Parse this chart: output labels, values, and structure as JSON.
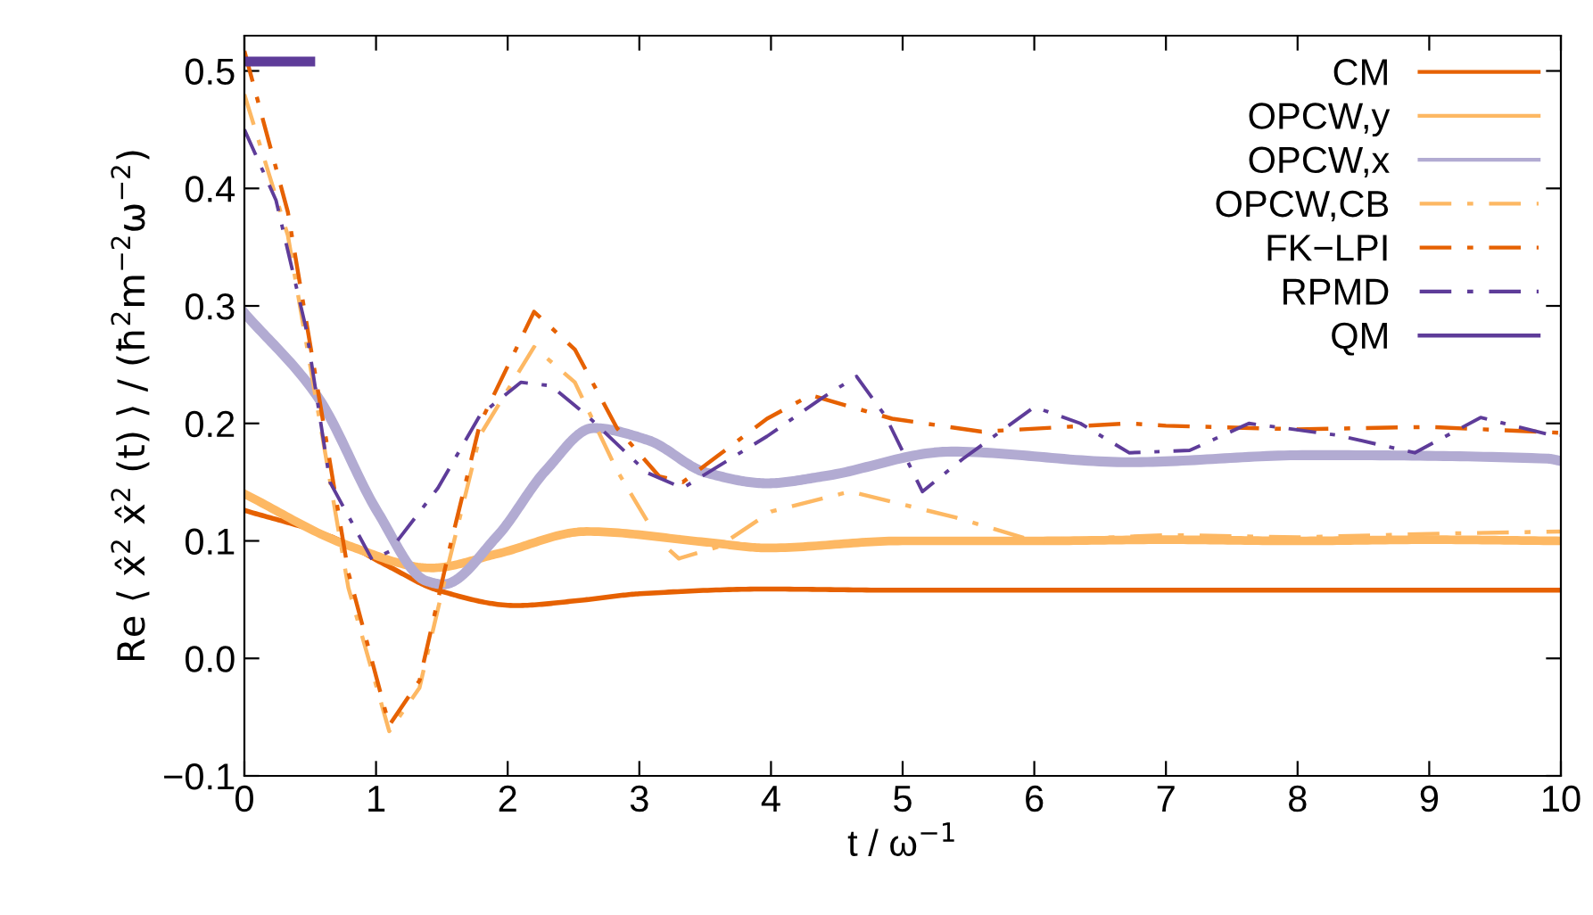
{
  "chart_data": {
    "type": "line",
    "xlabel": "t / ω$^{−1}$",
    "ylabel": "Re ⟨ x̂$^{2}$ x̂$^{2}$ (t) ⟩ / (ħ$^{2}$m$^{−2}$ω$^{−2}$)",
    "xlim": [
      0,
      10
    ],
    "xticks": [
      0,
      1,
      2,
      3,
      4,
      5,
      6,
      7,
      8,
      9,
      10
    ],
    "ylim": [
      -0.1,
      0.53
    ],
    "yticks": [
      {
        "value": -0.1,
        "label": "−0.1"
      },
      {
        "value": 0.0,
        "label": "0.0"
      },
      {
        "value": 0.1,
        "label": "0.1"
      },
      {
        "value": 0.2,
        "label": "0.2"
      },
      {
        "value": 0.3,
        "label": "0.3"
      },
      {
        "value": 0.4,
        "label": "0.4"
      },
      {
        "value": 0.5,
        "label": "0.5"
      }
    ],
    "grid": false,
    "legend": "top right",
    "series": [
      {
        "name": "CM",
        "color": "#e66101",
        "line_style": "solid",
        "x": [
          0,
          0.65,
          1.1,
          1.47,
          2.06,
          2.6,
          3.0,
          3.97,
          5,
          6,
          7,
          8,
          9,
          10
        ],
        "values": [
          0.126,
          0.104,
          0.078,
          0.058,
          0.045,
          0.05,
          0.055,
          0.059,
          0.058,
          0.058,
          0.058,
          0.058,
          0.058,
          0.058
        ]
      },
      {
        "name": "OPCW,y",
        "color": "#fdb863",
        "line_style": "solid",
        "x": [
          0,
          0.79,
          1.42,
          1.92,
          2.6,
          3.5,
          3.97,
          5,
          6,
          7,
          8,
          9,
          10
        ],
        "values": [
          0.14,
          0.096,
          0.077,
          0.089,
          0.108,
          0.099,
          0.094,
          0.1,
          0.1,
          0.101,
          0.1,
          0.101,
          0.1
        ]
      },
      {
        "name": "OPCW,x",
        "color": "#b2abd2",
        "line_style": "solid",
        "x": [
          0,
          0.56,
          1.01,
          1.38,
          1.51,
          1.92,
          2.29,
          2.65,
          3.06,
          3.51,
          3.97,
          4.4,
          5.37,
          6.72,
          8.08,
          9.9,
          10
        ],
        "values": [
          0.294,
          0.222,
          0.125,
          0.066,
          0.063,
          0.104,
          0.16,
          0.196,
          0.186,
          0.158,
          0.149,
          0.155,
          0.176,
          0.167,
          0.173,
          0.17,
          0.168
        ]
      },
      {
        "name": "OPCW,CB",
        "color": "#fdb863",
        "line_style": "dashdot",
        "x": [
          0,
          0.33,
          0.56,
          0.79,
          1.1,
          1.33,
          1.56,
          1.79,
          2.2,
          2.51,
          2.83,
          3.15,
          3.3,
          3.6,
          4.0,
          4.6,
          5.4,
          6.0,
          7.0,
          8.0,
          9.0,
          10
        ],
        "values": [
          0.48,
          0.36,
          0.21,
          0.06,
          -0.062,
          -0.025,
          0.085,
          0.19,
          0.265,
          0.235,
          0.16,
          0.1,
          0.085,
          0.095,
          0.125,
          0.142,
          0.12,
          0.1,
          0.105,
          0.103,
          0.106,
          0.108
        ]
      },
      {
        "name": "FK−LPI",
        "color": "#e66101",
        "line_style": "dashdot",
        "x": [
          0,
          0.33,
          0.56,
          0.79,
          1.1,
          1.33,
          1.56,
          1.79,
          2.2,
          2.51,
          2.83,
          3.15,
          3.33,
          3.97,
          4.3,
          4.92,
          5.6,
          6.72,
          7,
          8,
          9,
          10
        ],
        "values": [
          0.517,
          0.38,
          0.227,
          0.073,
          -0.057,
          -0.019,
          0.094,
          0.2,
          0.295,
          0.263,
          0.196,
          0.155,
          0.15,
          0.204,
          0.224,
          0.204,
          0.193,
          0.2,
          0.198,
          0.195,
          0.197,
          0.192
        ]
      },
      {
        "name": "RPMD",
        "color": "#5e3c99",
        "line_style": "dashdot",
        "x": [
          0,
          0.24,
          0.47,
          0.65,
          0.97,
          1.1,
          1.47,
          1.79,
          2.1,
          2.33,
          2.6,
          3.06,
          3.33,
          3.97,
          4.38,
          4.65,
          4.87,
          5.15,
          5.46,
          6.0,
          6.35,
          6.72,
          7.18,
          7.63,
          8.3,
          8.89,
          9.39,
          9.89,
          10
        ],
        "values": [
          0.45,
          0.39,
          0.28,
          0.15,
          0.084,
          0.091,
          0.145,
          0.207,
          0.235,
          0.232,
          0.207,
          0.158,
          0.145,
          0.189,
          0.221,
          0.24,
          0.206,
          0.142,
          0.17,
          0.214,
          0.2,
          0.175,
          0.177,
          0.2,
          0.19,
          0.175,
          0.205,
          0.191,
          0.19
        ]
      },
      {
        "name": "QM",
        "color": "#5e3c99",
        "line_style": "solid",
        "x": [
          0,
          0.5
        ],
        "values": [
          0.508,
          0.508
        ]
      }
    ]
  }
}
